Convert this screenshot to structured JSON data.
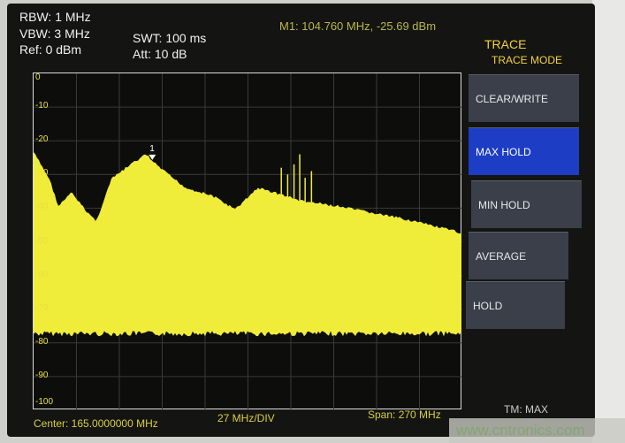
{
  "header": {
    "rbw": "RBW: 1 MHz",
    "vbw": "VBW: 3 MHz",
    "ref": "Ref: 0 dBm",
    "swt": "SWT: 100 ms",
    "att": "Att: 10 dB",
    "marker": "M1: 104.760 MHz, -25.69 dBm"
  },
  "menu": {
    "title": "TRACE",
    "subtitle": "TRACE MODE",
    "items": [
      {
        "label": "CLEAR/WRITE",
        "active": false
      },
      {
        "label": "MAX HOLD",
        "active": true
      },
      {
        "label": "MIN HOLD",
        "active": false
      },
      {
        "label": "AVERAGE",
        "active": false
      },
      {
        "label": "HOLD",
        "active": false
      }
    ]
  },
  "footer": {
    "center": "Center: 165.0000000 MHz",
    "div": "27 MHz/DIV",
    "span": "Span: 270 MHz",
    "tm": "TM: MAX"
  },
  "watermark": "www.cntronics.com",
  "colors": {
    "trace": "#f0ec3a",
    "grid": "#3a3a38",
    "active_key": "#1d3dc4"
  },
  "chart_data": {
    "type": "area",
    "xlim": [
      30,
      300
    ],
    "ylim": [
      -100,
      0
    ],
    "yticks": [
      "0",
      "-10",
      "-20",
      "-30",
      "-40",
      "-50",
      "-60",
      "-70",
      "-80",
      "-90",
      "-100"
    ],
    "x_divisions": 10,
    "grid": true,
    "x": [
      30,
      40,
      45.6,
      54,
      62.3,
      69.5,
      79,
      90,
      101,
      104.76,
      115,
      126,
      143,
      157,
      171,
      182,
      199,
      221,
      243,
      265.5,
      300
    ],
    "y": [
      -23,
      -31,
      -39,
      -35,
      -40,
      -43.5,
      -31,
      -27,
      -23.6,
      -25.7,
      -29.7,
      -33.6,
      -36,
      -40,
      -33.6,
      -35,
      -37.5,
      -39,
      -41,
      -43,
      -47
    ],
    "noise_floor": -77,
    "spurs": [
      {
        "x": 186,
        "y": -28
      },
      {
        "x": 190,
        "y": -30
      },
      {
        "x": 194,
        "y": -27
      },
      {
        "x": 197.6,
        "y": -24
      },
      {
        "x": 201,
        "y": -31
      },
      {
        "x": 205,
        "y": -29
      }
    ],
    "marker": {
      "label": "1",
      "x": 104.76,
      "y": -25.69
    }
  }
}
